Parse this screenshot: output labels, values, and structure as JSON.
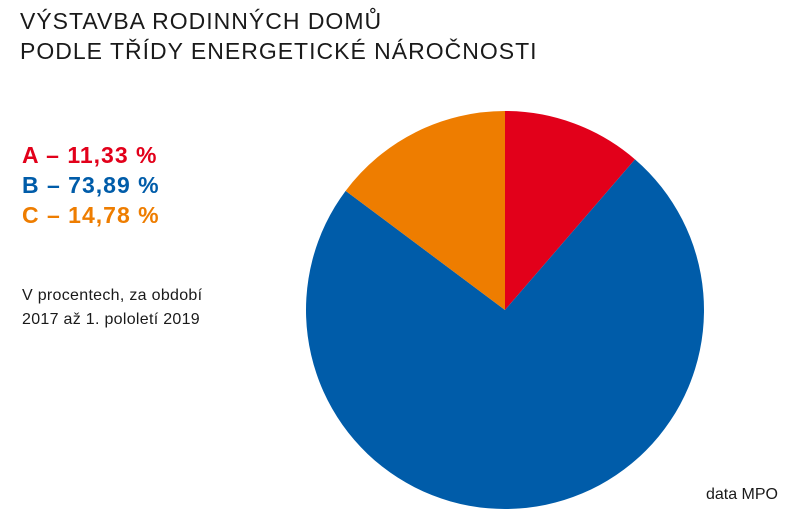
{
  "title": {
    "line1": "VÝSTAVBA RODINNÝCH DOMŮ",
    "line2": "PODLE TŘÍDY ENERGETICKÉ NÁROČNOSTI"
  },
  "note": {
    "line1": "V procentech, za období",
    "line2": "2017 až 1. pololetí 2019"
  },
  "source": "data MPO",
  "legend": [
    {
      "text": "A – 11,33 %",
      "color": "#e2001a"
    },
    {
      "text": "B – 73,89 %",
      "color": "#005ca9"
    },
    {
      "text": "C – 14,78 %",
      "color": "#ee7d00"
    }
  ],
  "chart_data": {
    "type": "pie",
    "categories": [
      "A",
      "B",
      "C"
    ],
    "values": [
      11.33,
      73.89,
      14.78
    ],
    "colors": [
      "#e2001a",
      "#005ca9",
      "#ee7d00"
    ],
    "unit": "%",
    "start_angle_deg": 0,
    "direction": "clockwise"
  }
}
